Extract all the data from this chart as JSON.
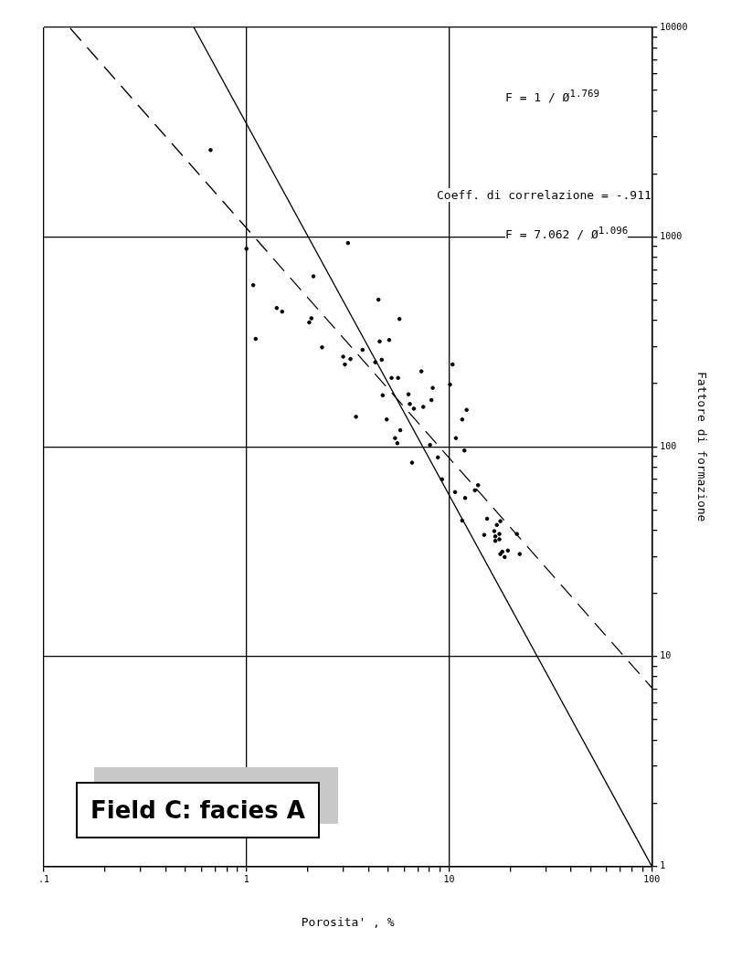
{
  "chart_data": {
    "type": "scatter",
    "xlabel": "Porosita' , %",
    "ylabel": "Fattore di formazione",
    "log": "xy",
    "xlim": [
      0.1,
      100
    ],
    "ylim": [
      1,
      10000
    ],
    "xticks": [
      {
        "value": 0.1,
        "label": ".1"
      },
      {
        "value": 0.2,
        "label": null
      },
      {
        "value": 0.3,
        "label": null
      },
      {
        "value": 0.4,
        "label": null
      },
      {
        "value": 0.5,
        "label": null
      },
      {
        "value": 0.6,
        "label": null
      },
      {
        "value": 0.7,
        "label": null
      },
      {
        "value": 0.8,
        "label": null
      },
      {
        "value": 0.9,
        "label": null
      },
      1,
      {
        "value": 2,
        "label": null
      },
      {
        "value": 3,
        "label": null
      },
      {
        "value": 4,
        "label": null
      },
      {
        "value": 5,
        "label": null
      },
      {
        "value": 6,
        "label": null
      },
      {
        "value": 7,
        "label": null
      },
      {
        "value": 8,
        "label": null
      },
      {
        "value": 9,
        "label": null
      },
      10,
      {
        "value": 20,
        "label": null
      },
      {
        "value": 30,
        "label": null
      },
      {
        "value": 40,
        "label": null
      },
      {
        "value": 50,
        "label": null
      },
      {
        "value": 60,
        "label": null
      },
      {
        "value": 70,
        "label": null
      },
      {
        "value": 80,
        "label": null
      },
      {
        "value": 90,
        "label": null
      },
      100
    ],
    "yticks": [
      1,
      {
        "value": 2,
        "label": null
      },
      {
        "value": 3,
        "label": null
      },
      {
        "value": 4,
        "label": null
      },
      {
        "value": 5,
        "label": null
      },
      {
        "value": 6,
        "label": null
      },
      {
        "value": 7,
        "label": null
      },
      {
        "value": 8,
        "label": null
      },
      {
        "value": 9,
        "label": null
      },
      10,
      {
        "value": 20,
        "label": null
      },
      {
        "value": 30,
        "label": null
      },
      {
        "value": 40,
        "label": null
      },
      {
        "value": 50,
        "label": null
      },
      {
        "value": 60,
        "label": null
      },
      {
        "value": 70,
        "label": null
      },
      {
        "value": 80,
        "label": null
      },
      {
        "value": 90,
        "label": null
      },
      100,
      {
        "value": 200,
        "label": null
      },
      {
        "value": 300,
        "label": null
      },
      {
        "value": 400,
        "label": null
      },
      {
        "value": 500,
        "label": null
      },
      {
        "value": 600,
        "label": null
      },
      {
        "value": 700,
        "label": null
      },
      {
        "value": 800,
        "label": null
      },
      {
        "value": 900,
        "label": null
      },
      1000,
      {
        "value": 2000,
        "label": null
      },
      {
        "value": 3000,
        "label": null
      },
      {
        "value": 4000,
        "label": null
      },
      {
        "value": 5000,
        "label": null
      },
      {
        "value": 6000,
        "label": null
      },
      {
        "value": 7000,
        "label": null
      },
      {
        "value": 8000,
        "label": null
      },
      {
        "value": 9000,
        "label": null
      },
      10000
    ],
    "grid": true,
    "legend": false,
    "marker": "circle",
    "series": [
      {
        "type": "scatter",
        "color": "#000000",
        "x": [
          0.665,
          1.0,
          3.17,
          2.14,
          1.08,
          4.48,
          1.41,
          1.5,
          5.69,
          2.09,
          2.04,
          1.11,
          4.54,
          5.06,
          2.36,
          3.74,
          3.0,
          3.26,
          3.06,
          4.65,
          4.32,
          7.3,
          5.2,
          5.6,
          4.7,
          6.4,
          10.4,
          10.1,
          8.3,
          6.3,
          8.18,
          6.7,
          7.46,
          12.2,
          11.6,
          3.47,
          4.92,
          5.74,
          5.41,
          5.55,
          10.8,
          8.05,
          11.9,
          8.8,
          6.56,
          9.23,
          13.9,
          13.4,
          10.7,
          12.0,
          11.6,
          15.4,
          17.9,
          17.2,
          16.7,
          17.7,
          14.9,
          21.6,
          16.9,
          17.7,
          16.9,
          19.5,
          18.3,
          17.9,
          22.3,
          18.8
        ],
        "values": [
          2600,
          880,
          937,
          650,
          590,
          503,
          459,
          441,
          407,
          410,
          392,
          327,
          318,
          323,
          298,
          290,
          269,
          262,
          247,
          260,
          253,
          229,
          213,
          213,
          176,
          160,
          247,
          198,
          191,
          178,
          167,
          152,
          155,
          150,
          135,
          139,
          135,
          120,
          110,
          104,
          110,
          102,
          96,
          89,
          84,
          70,
          65.6,
          62,
          60.8,
          57,
          44.5,
          45.4,
          44.2,
          42.4,
          39.6,
          38.4,
          38,
          38.4,
          37.4,
          36.2,
          35.6,
          32,
          31.6,
          30.8,
          30.8,
          29.8
        ]
      },
      {
        "type": "line",
        "color": "#000000",
        "line_style": "solid",
        "marker": "none",
        "x": [
          0.55,
          100
        ],
        "values": [
          10000,
          1
        ]
      },
      {
        "type": "line",
        "color": "#000000",
        "line_style": "dashed",
        "marker": "none",
        "x": [
          0.135,
          100
        ],
        "values": [
          9900,
          7.1
        ]
      }
    ],
    "annotations": [
      "F = 1 / Ø$^{1.769}$",
      "Coeff. di correlazione = -.911",
      "F = 7.062 / Ø$^{1.096}$",
      "Field C: facies A"
    ]
  }
}
